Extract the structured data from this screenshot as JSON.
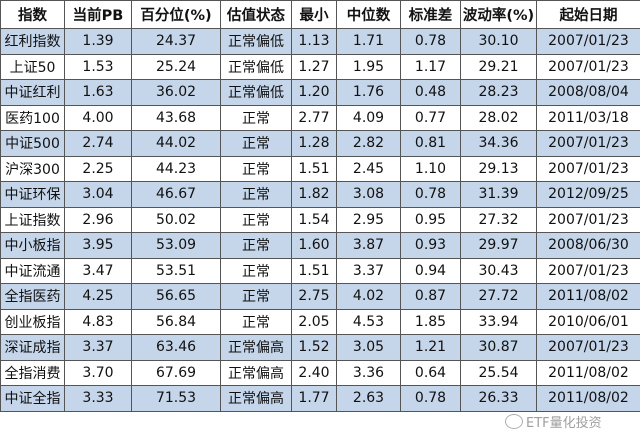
{
  "headers": [
    "指数",
    "当前PB",
    "百分位(%)",
    "估值状态",
    "最小",
    "中位数",
    "标准差",
    "波动率(%)",
    "起始日期"
  ],
  "rows": [
    [
      "红利指数",
      "1.39",
      "24.37",
      "正常偏低",
      "1.13",
      "1.71",
      "0.78",
      "30.10",
      "2007/01/23"
    ],
    [
      "上证50",
      "1.53",
      "25.24",
      "正常偏低",
      "1.27",
      "1.95",
      "1.17",
      "29.21",
      "2007/01/23"
    ],
    [
      "中证红利",
      "1.63",
      "36.02",
      "正常偏低",
      "1.20",
      "1.76",
      "0.48",
      "28.23",
      "2008/08/04"
    ],
    [
      "医药100",
      "4.00",
      "43.68",
      "正常",
      "2.77",
      "4.09",
      "0.77",
      "28.02",
      "2011/03/18"
    ],
    [
      "中证500",
      "2.74",
      "44.02",
      "正常",
      "1.28",
      "2.82",
      "0.81",
      "34.36",
      "2007/01/23"
    ],
    [
      "沪深300",
      "2.25",
      "44.23",
      "正常",
      "1.51",
      "2.45",
      "1.10",
      "29.13",
      "2007/01/23"
    ],
    [
      "中证环保",
      "3.04",
      "46.67",
      "正常",
      "1.82",
      "3.08",
      "0.78",
      "31.39",
      "2012/09/25"
    ],
    [
      "上证指数",
      "2.96",
      "50.02",
      "正常",
      "1.54",
      "2.95",
      "0.95",
      "27.32",
      "2007/01/23"
    ],
    [
      "中小板指",
      "3.95",
      "53.09",
      "正常",
      "1.60",
      "3.87",
      "0.93",
      "29.97",
      "2008/06/30"
    ],
    [
      "中证流通",
      "3.47",
      "53.51",
      "正常",
      "1.51",
      "3.37",
      "0.94",
      "30.43",
      "2007/01/23"
    ],
    [
      "全指医药",
      "4.25",
      "56.65",
      "正常",
      "2.75",
      "4.02",
      "0.87",
      "27.72",
      "2011/08/02"
    ],
    [
      "创业板指",
      "4.83",
      "56.84",
      "正常",
      "2.05",
      "4.53",
      "1.85",
      "33.94",
      "2010/06/01"
    ],
    [
      "深证成指",
      "3.37",
      "63.46",
      "正常偏高",
      "1.52",
      "3.05",
      "1.21",
      "30.87",
      "2007/01/23"
    ],
    [
      "全指消费",
      "3.70",
      "67.69",
      "正常偏高",
      "2.40",
      "3.36",
      "0.64",
      "25.54",
      "2011/08/02"
    ],
    [
      "中证全指",
      "3.33",
      "71.53",
      "正常偏高",
      "1.77",
      "2.63",
      "0.78",
      "26.33",
      "2011/08/02"
    ]
  ],
  "watermark": "ETF量化投资",
  "colors": {
    "alt_row": "#c5d5ea"
  }
}
